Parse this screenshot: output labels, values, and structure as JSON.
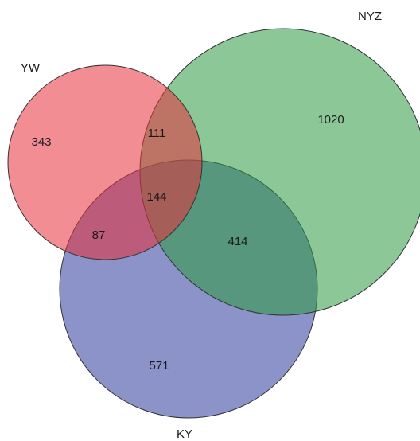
{
  "venn": {
    "sets": [
      {
        "key": "yw",
        "label": "YW",
        "color": "#e8303b"
      },
      {
        "key": "nyz",
        "label": "NYZ",
        "color": "#2e9a42"
      },
      {
        "key": "ky",
        "label": "KY",
        "color": "#2b3a9a"
      }
    ],
    "regions": {
      "yw_only": "343",
      "nyz_only": "1020",
      "ky_only": "571",
      "yw_nyz": "111",
      "yw_ky": "87",
      "nyz_ky": "414",
      "all_three": "144"
    }
  }
}
